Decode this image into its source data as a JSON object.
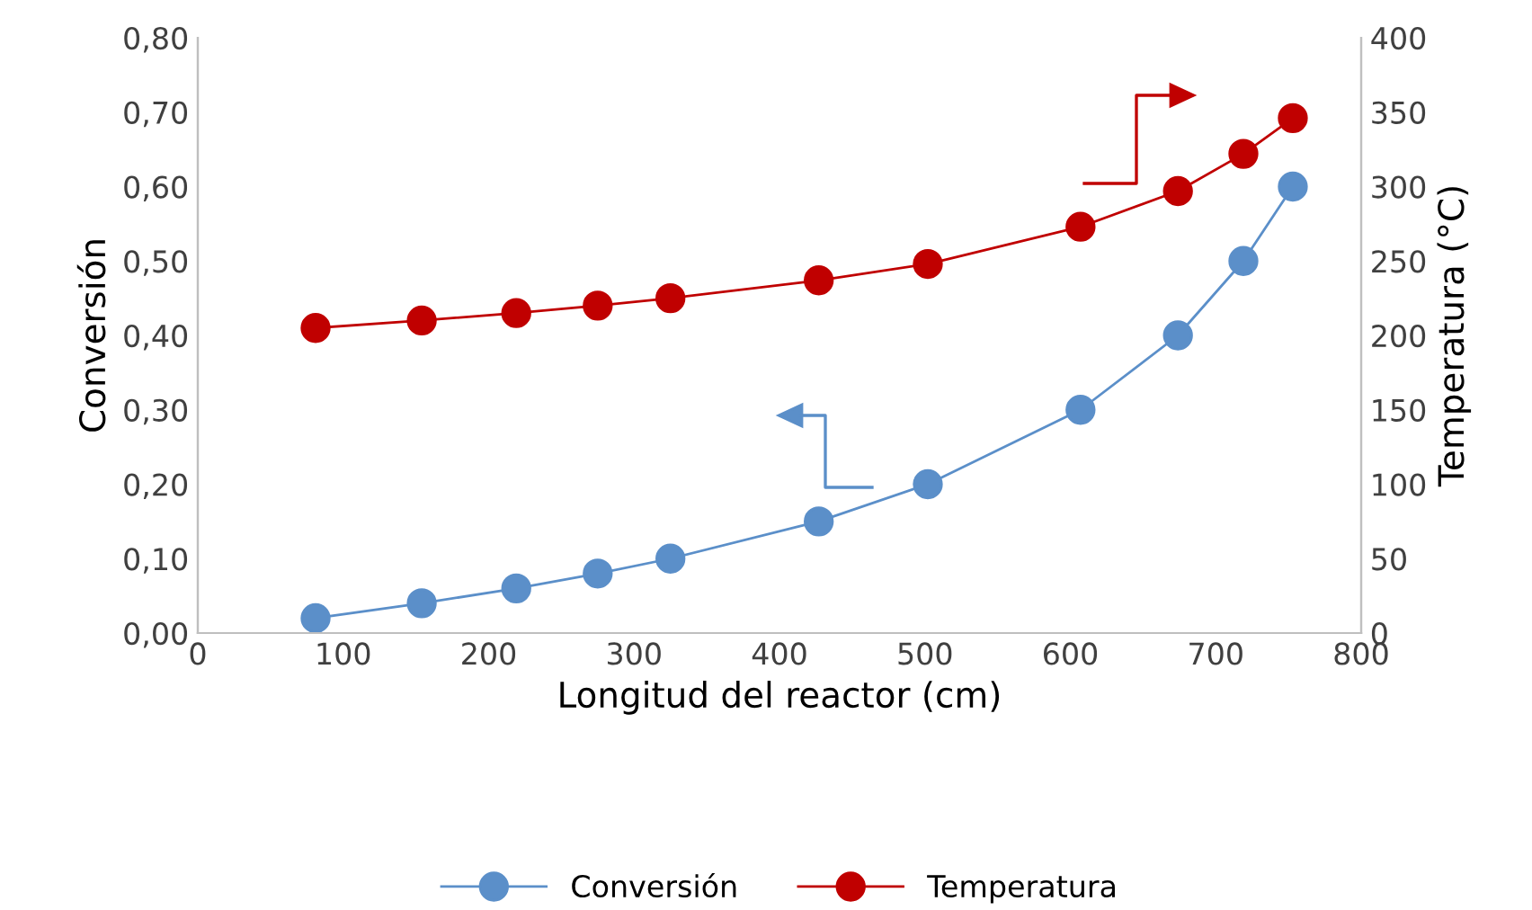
{
  "chart_data": {
    "type": "line",
    "xlabel": "Longitud del reactor (cm)",
    "ylabel": "Conversión",
    "y2label": "Temperatura (°C)",
    "xlim": [
      0,
      800
    ],
    "xticks": [
      0,
      100,
      200,
      300,
      400,
      500,
      600,
      700,
      800
    ],
    "ylim": [
      0,
      0.8
    ],
    "yticks": [
      {
        "value": 0,
        "label": "0,00"
      },
      {
        "value": 0.1,
        "label": "0,10"
      },
      {
        "value": 0.2,
        "label": "0,20"
      },
      {
        "value": 0.3,
        "label": "0,30"
      },
      {
        "value": 0.4,
        "label": "0,40"
      },
      {
        "value": 0.5,
        "label": "0,50"
      },
      {
        "value": 0.6,
        "label": "0,60"
      },
      {
        "value": 0.7,
        "label": "0,70"
      },
      {
        "value": 0.8,
        "label": "0,80"
      }
    ],
    "y2lim": [
      0,
      400
    ],
    "y2ticks": [
      0,
      50,
      100,
      150,
      200,
      250,
      300,
      350,
      400
    ],
    "grid": false,
    "legend": "bottom",
    "marker": "circle",
    "line_style": "solid",
    "series": [
      {
        "name": "Conversión",
        "color": "#5b8fc9",
        "x": [
          81,
          154,
          219,
          275,
          325,
          427,
          502,
          607,
          674,
          719,
          753
        ],
        "values": [
          0.02,
          0.04,
          0.06,
          0.08,
          0.1,
          0.15,
          0.2,
          0.3,
          0.4,
          0.5,
          0.6
        ]
      },
      {
        "name": "Temperatura",
        "color": "#c00000",
        "axis": "y2",
        "x": [
          81,
          154,
          219,
          275,
          325,
          427,
          502,
          607,
          674,
          719,
          753
        ],
        "values": [
          205,
          210,
          215,
          220,
          225,
          237,
          248,
          273,
          297,
          322,
          346
        ]
      }
    ]
  }
}
